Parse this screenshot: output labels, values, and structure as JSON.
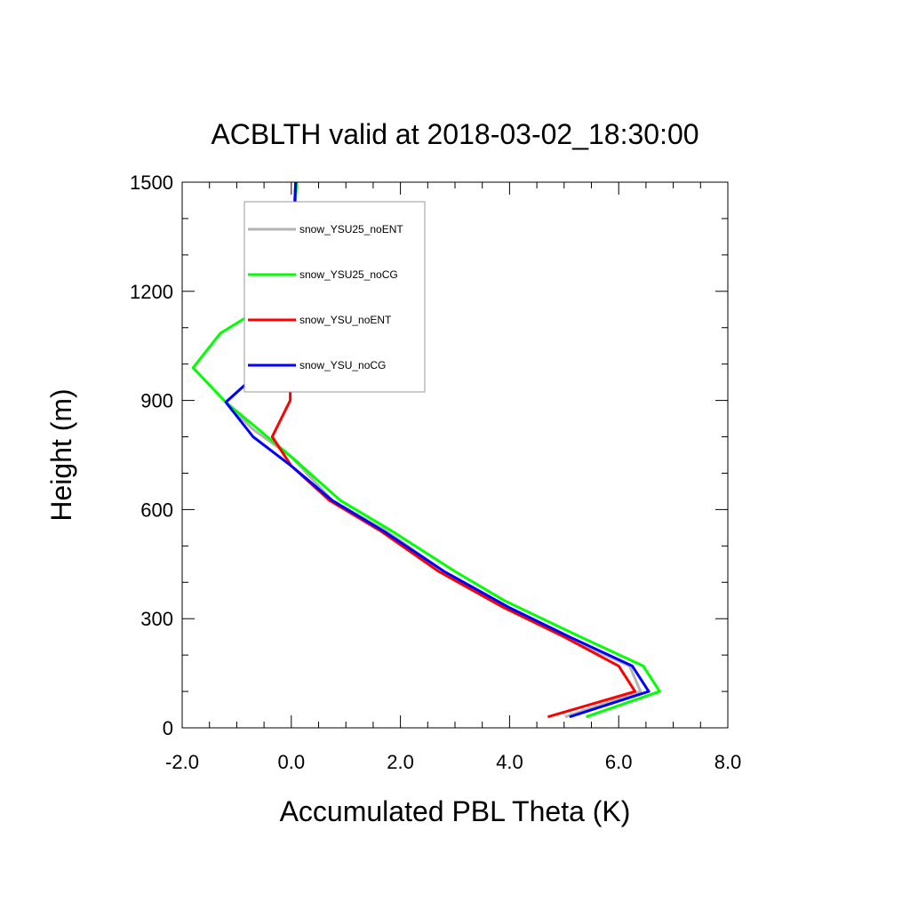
{
  "chart_data": {
    "type": "line",
    "title": "ACBLTH valid at 2018-03-02_18:30:00",
    "xlabel": "Accumulated PBL Theta (K)",
    "ylabel": "Height (m)",
    "xlim": [
      -2,
      8
    ],
    "ylim": [
      0,
      1500
    ],
    "xticks": [
      -2,
      0,
      2,
      4,
      6,
      8
    ],
    "xtick_labels": [
      "-2.0",
      "0.0",
      "2.0",
      "4.0",
      "6.0",
      "8.0"
    ],
    "yticks": [
      0,
      300,
      600,
      900,
      1200,
      1500
    ],
    "ytick_labels": [
      "0",
      "300",
      "600",
      "900",
      "1200",
      "1500"
    ],
    "grid": false,
    "legend_position": "top-left",
    "series": [
      {
        "name": "snow_YSU25_noENT",
        "color": "#b4b4b4",
        "x": [
          5.02,
          6.4,
          6.2,
          5.0,
          4.0,
          2.8,
          1.7,
          0.75,
          0.0,
          -0.7,
          -1.2,
          -0.5,
          -0.05,
          0.0,
          0.02,
          0.05,
          0.08
        ],
        "y": [
          30,
          100,
          170,
          250,
          330,
          430,
          545,
          625,
          745,
          820,
          895,
          990,
          1085,
          1190,
          1300,
          1400,
          1500
        ]
      },
      {
        "name": "snow_YSU25_noCG",
        "color": "#00ff00",
        "x": [
          5.4,
          6.75,
          6.45,
          5.3,
          3.9,
          3.0,
          1.8,
          0.9,
          0.0,
          -0.6,
          -1.2,
          -1.8,
          -1.3,
          -0.15,
          0.0,
          0.05,
          0.1
        ],
        "y": [
          30,
          100,
          170,
          250,
          350,
          430,
          545,
          625,
          745,
          820,
          895,
          990,
          1085,
          1190,
          1300,
          1400,
          1500
        ]
      },
      {
        "name": "snow_YSU_noENT",
        "color": "#ff0000",
        "x": [
          4.7,
          6.3,
          6.0,
          5.0,
          3.9,
          2.7,
          1.65,
          0.7,
          0.0,
          -0.35,
          -0.02,
          -0.02,
          -0.02,
          0.0,
          0.02,
          0.05,
          0.08
        ],
        "y": [
          30,
          100,
          170,
          250,
          330,
          430,
          540,
          625,
          720,
          800,
          900,
          990,
          1085,
          1190,
          1300,
          1400,
          1500
        ]
      },
      {
        "name": "snow_YSU_noCG",
        "color": "#0000ff",
        "x": [
          5.1,
          6.55,
          6.25,
          5.1,
          4.0,
          2.8,
          1.7,
          0.75,
          0.0,
          -0.7,
          -1.2,
          -0.5,
          -0.05,
          0.0,
          0.02,
          0.05,
          0.08
        ],
        "y": [
          30,
          100,
          170,
          250,
          330,
          430,
          540,
          625,
          720,
          800,
          895,
          990,
          1085,
          1190,
          1300,
          1400,
          1500
        ]
      }
    ]
  }
}
